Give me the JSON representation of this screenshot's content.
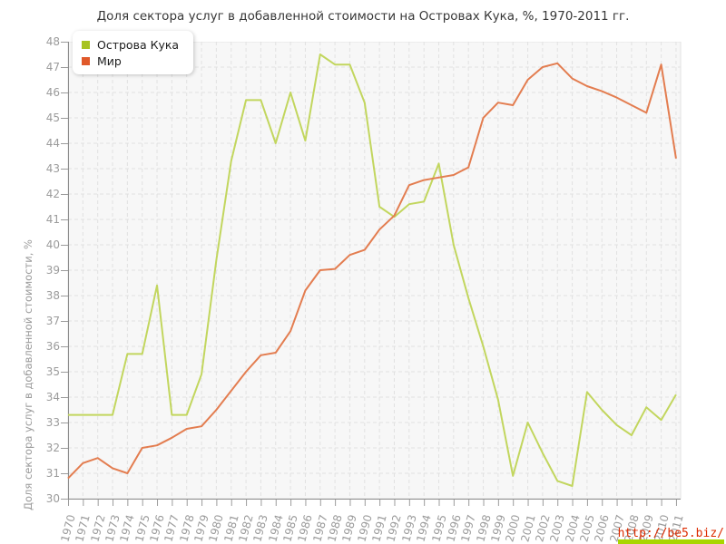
{
  "title": "Доля сектора услуг в добавленной стоимости на Островах Кука, %, 1970-2011 гг.",
  "watermark": "http://be5.biz/",
  "legend": [
    {
      "label": "Острова Кука",
      "marker_color": "#a7c322"
    },
    {
      "label": "Мир",
      "marker_color": "#e0592a"
    }
  ],
  "colors": {
    "cook_line": "#c2d65e",
    "world_line": "#e37d50",
    "plot_bg": "#f7f7f7",
    "grid": "#e1e1e1",
    "plot_border": "#e3e3e3",
    "axis": "#8c8c8c",
    "tick": "#9b9b9b"
  },
  "chart_data": {
    "type": "line",
    "title": "Доля сектора услуг в добавленной стоимости на Островах Кука, %, 1970-2011 гг.",
    "xlabel": "",
    "ylabel": "Доля сектора услуг в добавленной стоимости, %",
    "ylim": [
      30,
      48
    ],
    "ytick_step": 1,
    "grid": true,
    "legend_position": "top-left",
    "x": [
      1970,
      1971,
      1972,
      1973,
      1974,
      1975,
      1976,
      1977,
      1978,
      1979,
      1980,
      1981,
      1982,
      1983,
      1984,
      1985,
      1986,
      1987,
      1988,
      1989,
      1990,
      1991,
      1992,
      1993,
      1994,
      1995,
      1996,
      1997,
      1998,
      1999,
      2000,
      2001,
      2002,
      2003,
      2004,
      2005,
      2006,
      2007,
      2008,
      2009,
      2010,
      2011
    ],
    "series": [
      {
        "name": "Острова Кука",
        "color": "#c2d65e",
        "values": [
          33.3,
          33.3,
          33.3,
          33.3,
          35.7,
          35.7,
          38.4,
          33.3,
          33.3,
          34.9,
          39.4,
          43.3,
          45.7,
          45.7,
          44.0,
          46.0,
          44.1,
          47.5,
          47.1,
          47.1,
          45.6,
          41.5,
          41.1,
          41.6,
          41.7,
          43.2,
          40.0,
          37.9,
          36.0,
          33.9,
          30.9,
          33.0,
          31.8,
          30.7,
          30.5,
          34.2,
          33.5,
          32.9,
          32.5,
          33.6,
          33.1,
          34.1
        ]
      },
      {
        "name": "Мир",
        "color": "#e37d50",
        "values": [
          30.8,
          31.4,
          31.6,
          31.2,
          31.0,
          32.0,
          32.1,
          32.4,
          32.75,
          32.85,
          33.5,
          34.25,
          35.0,
          35.65,
          35.75,
          36.6,
          38.2,
          39.0,
          39.05,
          39.6,
          39.8,
          40.6,
          41.15,
          42.35,
          42.55,
          42.65,
          42.75,
          43.05,
          45.0,
          45.6,
          45.5,
          46.5,
          47.0,
          47.15,
          46.55,
          46.25,
          46.05,
          45.8,
          45.5,
          45.2,
          47.1,
          43.4
        ]
      }
    ]
  }
}
